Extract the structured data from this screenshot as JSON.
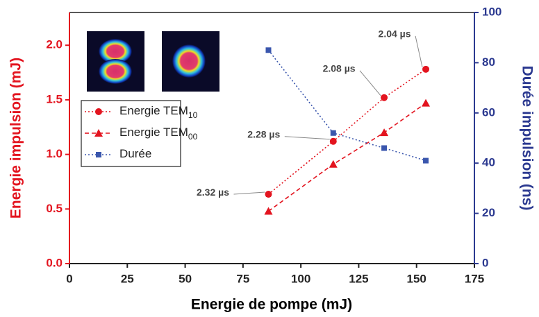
{
  "chart_data": {
    "type": "line",
    "xlabel": "Energie de pompe (mJ)",
    "ylabel": "Energie impulsion (mJ)",
    "y2label": "Durée impulsion (ns)",
    "x": [
      86,
      114,
      136,
      154
    ],
    "xlim": [
      0,
      175
    ],
    "xticks": [
      0,
      25,
      50,
      75,
      100,
      125,
      150,
      175
    ],
    "ylim": [
      0,
      2.3
    ],
    "yticks": [
      {
        "value": 0,
        "label": "0.0"
      },
      0.5,
      {
        "value": 1,
        "label": "1.0"
      },
      1.5,
      {
        "value": 2,
        "label": "2.0"
      }
    ],
    "y2lim": [
      0,
      100
    ],
    "y2ticks": [
      0,
      20,
      40,
      60,
      80,
      100
    ],
    "ycolor": "#e3141f",
    "y2color": "#2b3990",
    "series": [
      {
        "name": "Energie TEM",
        "subscript": "10",
        "color": "#e3141f",
        "marker": "circle",
        "dash": "dotted",
        "values": [
          0.635,
          1.12,
          1.52,
          1.78
        ],
        "point_labels": [
          "2.32 µs",
          "2.28 µs",
          "2.08 µs",
          "2.04 µs"
        ]
      },
      {
        "name": "Energie TEM",
        "subscript": "00",
        "color": "#e3141f",
        "marker": "triangle",
        "dash": "dashed",
        "values": [
          0.48,
          0.91,
          1.2,
          1.47
        ]
      },
      {
        "name": "Durée",
        "color": "#3a56ad",
        "marker": "square",
        "dash": "dotted",
        "axis": "y2",
        "values": [
          85,
          52,
          46,
          41
        ]
      }
    ]
  }
}
